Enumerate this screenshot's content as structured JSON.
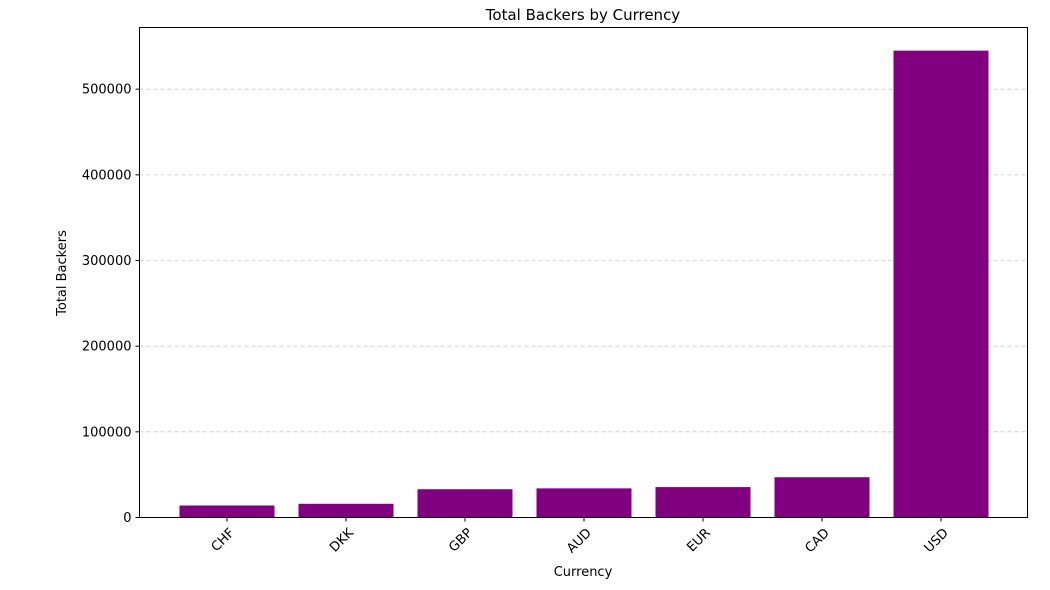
{
  "chart_data": {
    "type": "bar",
    "title": "Total Backers by Currency",
    "xlabel": "Currency",
    "ylabel": "Total Backers",
    "categories": [
      "CHF",
      "DKK",
      "GBP",
      "AUD",
      "EUR",
      "CAD",
      "USD"
    ],
    "values": [
      14000,
      16000,
      33000,
      34000,
      35500,
      47000,
      545000
    ],
    "ylim": [
      0,
      572000
    ],
    "yticks": [
      0,
      100000,
      200000,
      300000,
      400000,
      500000
    ],
    "ytick_labels": [
      "0",
      "100000",
      "200000",
      "300000",
      "400000",
      "500000"
    ],
    "bar_color": "#800080",
    "grid": "y-axis dashed",
    "legend": "none",
    "xtick_rotation": "45 degrees"
  }
}
